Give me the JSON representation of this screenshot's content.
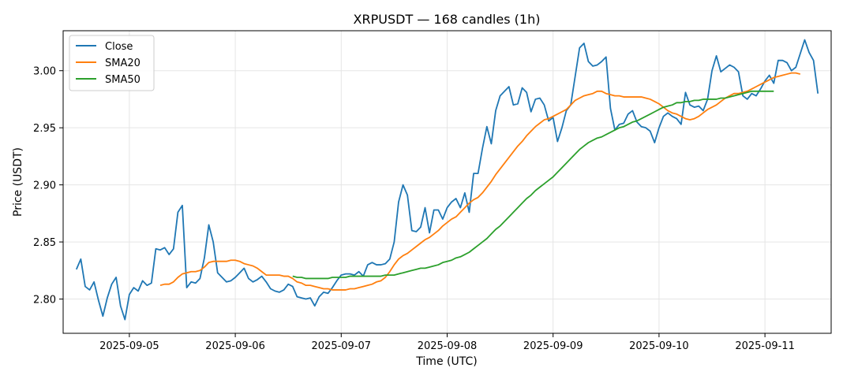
{
  "chart_data": {
    "type": "line",
    "title": "XRPUSDT — 168 candles (1h)",
    "xlabel": "Time (UTC)",
    "ylabel": "Price (USDT)",
    "x_axis_type": "date",
    "x_start": "2025-09-04 12:00",
    "x_step_hours": 1,
    "xlim": [
      "2025-09-04 09:00",
      "2025-09-11 15:00"
    ],
    "ylim": [
      2.77,
      3.035
    ],
    "x_ticks": [
      "2025-09-05",
      "2025-09-06",
      "2025-09-07",
      "2025-09-08",
      "2025-09-09",
      "2025-09-10",
      "2025-09-11"
    ],
    "y_ticks": [
      2.8,
      2.85,
      2.9,
      2.95,
      3.0
    ],
    "y_tick_labels": [
      "2.80",
      "2.85",
      "2.90",
      "2.95",
      "3.00"
    ],
    "grid": true,
    "legend_position": "upper-left",
    "series": [
      {
        "name": "Close",
        "color": "#1f77b4",
        "start_index": 0,
        "values": [
          2.826,
          2.835,
          2.811,
          2.808,
          2.815,
          2.799,
          2.785,
          2.801,
          2.813,
          2.819,
          2.794,
          2.782,
          2.804,
          2.81,
          2.807,
          2.816,
          2.812,
          2.814,
          2.844,
          2.843,
          2.845,
          2.839,
          2.844,
          2.876,
          2.882,
          2.81,
          2.815,
          2.814,
          2.818,
          2.836,
          2.865,
          2.85,
          2.823,
          2.819,
          2.815,
          2.816,
          2.819,
          2.823,
          2.827,
          2.818,
          2.815,
          2.817,
          2.82,
          2.815,
          2.809,
          2.807,
          2.806,
          2.808,
          2.813,
          2.811,
          2.802,
          2.801,
          2.8,
          2.801,
          2.794,
          2.802,
          2.806,
          2.805,
          2.81,
          2.816,
          2.821,
          2.822,
          2.822,
          2.821,
          2.824,
          2.82,
          2.83,
          2.832,
          2.83,
          2.83,
          2.831,
          2.835,
          2.85,
          2.885,
          2.9,
          2.891,
          2.86,
          2.859,
          2.863,
          2.88,
          2.858,
          2.878,
          2.878,
          2.87,
          2.88,
          2.885,
          2.888,
          2.88,
          2.893,
          2.876,
          2.91,
          2.91,
          2.932,
          2.951,
          2.936,
          2.965,
          2.978,
          2.982,
          2.986,
          2.97,
          2.971,
          2.985,
          2.981,
          2.964,
          2.975,
          2.976,
          2.97,
          2.956,
          2.959,
          2.938,
          2.95,
          2.965,
          2.97,
          2.995,
          3.02,
          3.024,
          3.008,
          3.004,
          3.005,
          3.008,
          3.012,
          2.967,
          2.948,
          2.953,
          2.954,
          2.962,
          2.965,
          2.955,
          2.951,
          2.95,
          2.947,
          2.937,
          2.95,
          2.96,
          2.963,
          2.96,
          2.958,
          2.953,
          2.981,
          2.97,
          2.968,
          2.969,
          2.965,
          2.975,
          3.0,
          3.013,
          2.999,
          3.002,
          3.005,
          3.003,
          2.999,
          2.978,
          2.975,
          2.98,
          2.978,
          2.984,
          2.991,
          2.996,
          2.989,
          3.009,
          3.009,
          3.007,
          3.0,
          3.003,
          3.015,
          3.027,
          3.016,
          3.009,
          2.98
        ]
      },
      {
        "name": "SMA20",
        "color": "#ff7f0e",
        "start_index": 19,
        "values": [
          2.812,
          2.813,
          2.813,
          2.815,
          2.819,
          2.822,
          2.823,
          2.824,
          2.824,
          2.825,
          2.828,
          2.832,
          2.833,
          2.833,
          2.833,
          2.833,
          2.834,
          2.834,
          2.833,
          2.831,
          2.83,
          2.829,
          2.827,
          2.824,
          2.821,
          2.821,
          2.821,
          2.821,
          2.82,
          2.82,
          2.818,
          2.815,
          2.814,
          2.812,
          2.812,
          2.811,
          2.81,
          2.809,
          2.809,
          2.808,
          2.808,
          2.808,
          2.808,
          2.809,
          2.809,
          2.81,
          2.811,
          2.812,
          2.813,
          2.815,
          2.816,
          2.819,
          2.824,
          2.83,
          2.835,
          2.838,
          2.84,
          2.843,
          2.846,
          2.849,
          2.852,
          2.854,
          2.857,
          2.86,
          2.864,
          2.867,
          2.87,
          2.872,
          2.876,
          2.88,
          2.884,
          2.887,
          2.889,
          2.893,
          2.898,
          2.903,
          2.909,
          2.914,
          2.919,
          2.924,
          2.929,
          2.934,
          2.938,
          2.943,
          2.947,
          2.951,
          2.954,
          2.957,
          2.958,
          2.96,
          2.962,
          2.964,
          2.966,
          2.97,
          2.974,
          2.976,
          2.978,
          2.979,
          2.98,
          2.982,
          2.982,
          2.98,
          2.979,
          2.978,
          2.978,
          2.977,
          2.977,
          2.977,
          2.977,
          2.977,
          2.976,
          2.975,
          2.973,
          2.971,
          2.968,
          2.965,
          2.963,
          2.962,
          2.96,
          2.958,
          2.957,
          2.958,
          2.96,
          2.963,
          2.966,
          2.968,
          2.97,
          2.973,
          2.976,
          2.978,
          2.98,
          2.98,
          2.981,
          2.982,
          2.984,
          2.986,
          2.988,
          2.99,
          2.992,
          2.994,
          2.995,
          2.996,
          2.997,
          2.998,
          2.998,
          2.997
        ]
      },
      {
        "name": "SMA50",
        "color": "#2ca02c",
        "start_index": 49,
        "values": [
          2.82,
          2.819,
          2.819,
          2.818,
          2.818,
          2.818,
          2.818,
          2.818,
          2.818,
          2.819,
          2.819,
          2.819,
          2.819,
          2.82,
          2.82,
          2.82,
          2.82,
          2.82,
          2.82,
          2.82,
          2.82,
          2.821,
          2.821,
          2.821,
          2.822,
          2.823,
          2.824,
          2.825,
          2.826,
          2.827,
          2.827,
          2.828,
          2.829,
          2.83,
          2.832,
          2.833,
          2.834,
          2.836,
          2.837,
          2.839,
          2.841,
          2.844,
          2.847,
          2.85,
          2.853,
          2.857,
          2.861,
          2.864,
          2.868,
          2.872,
          2.876,
          2.88,
          2.884,
          2.888,
          2.891,
          2.895,
          2.898,
          2.901,
          2.904,
          2.907,
          2.911,
          2.915,
          2.919,
          2.923,
          2.927,
          2.931,
          2.934,
          2.937,
          2.939,
          2.941,
          2.942,
          2.944,
          2.946,
          2.948,
          2.95,
          2.951,
          2.953,
          2.955,
          2.956,
          2.958,
          2.96,
          2.962,
          2.964,
          2.966,
          2.968,
          2.969,
          2.97,
          2.972,
          2.972,
          2.973,
          2.973,
          2.974,
          2.974,
          2.975,
          2.975,
          2.975,
          2.975,
          2.976,
          2.976,
          2.977,
          2.978,
          2.979,
          2.98,
          2.981,
          2.982,
          2.982,
          2.982,
          2.982,
          2.982,
          2.982
        ]
      }
    ]
  }
}
